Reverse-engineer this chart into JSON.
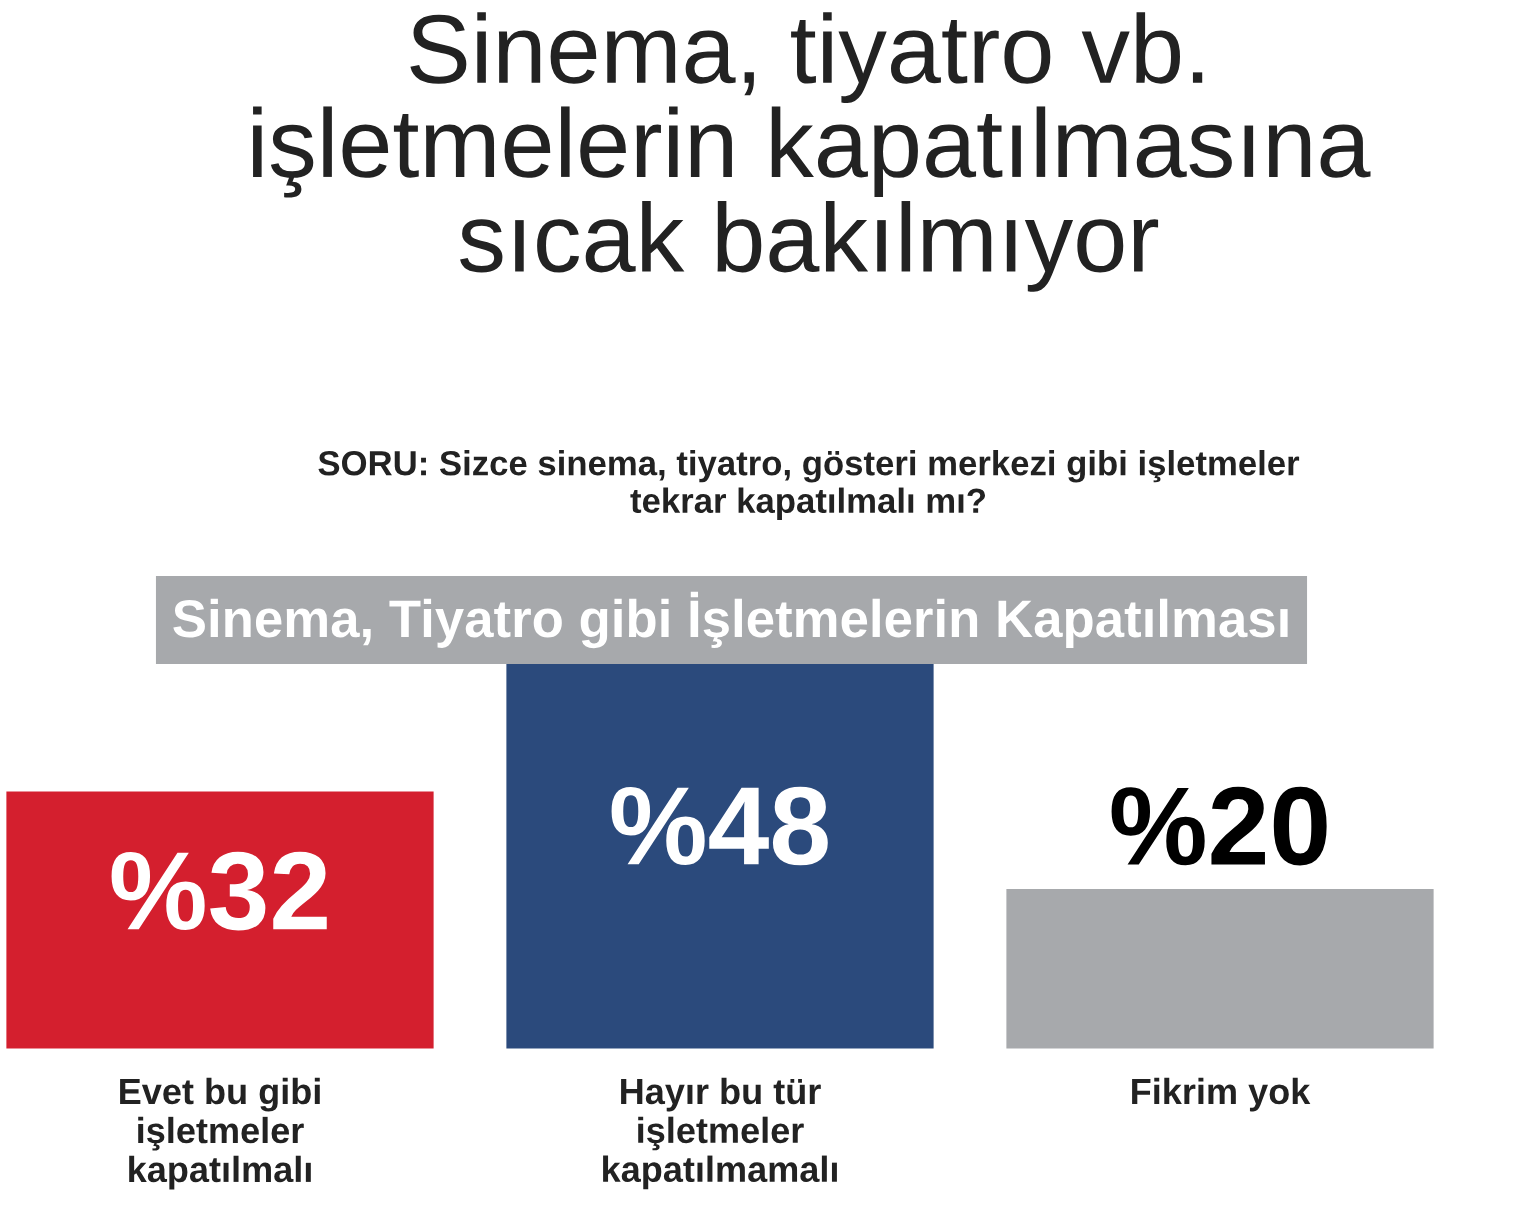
{
  "chart_data": {
    "type": "bar",
    "title": "Sinema, tiyatro vb.\nişletmelerin kapatılmasına\nsıcak bakılmıyor",
    "subtitle": "SORU: Sizce sinema, tiyatro, gösteri merkezi gibi işletmeler\ntekrar kapatılmalı mı?",
    "annotations": [
      "Sinema, Tiyatro gibi İşletmelerin Kapatılması"
    ],
    "categories": [
      "Evet bu gibi\nişletmeler\nkapatılmalı",
      "Hayır bu tür\nişletmeler\nkapatılmamalı",
      "Fikrim yok"
    ],
    "values": [
      32,
      48,
      20
    ],
    "colors": [
      "#d41f2e",
      "#2b4a7c",
      "#a7a9ac"
    ],
    "value_labels": [
      "%32",
      "%48",
      "%20"
    ]
  }
}
